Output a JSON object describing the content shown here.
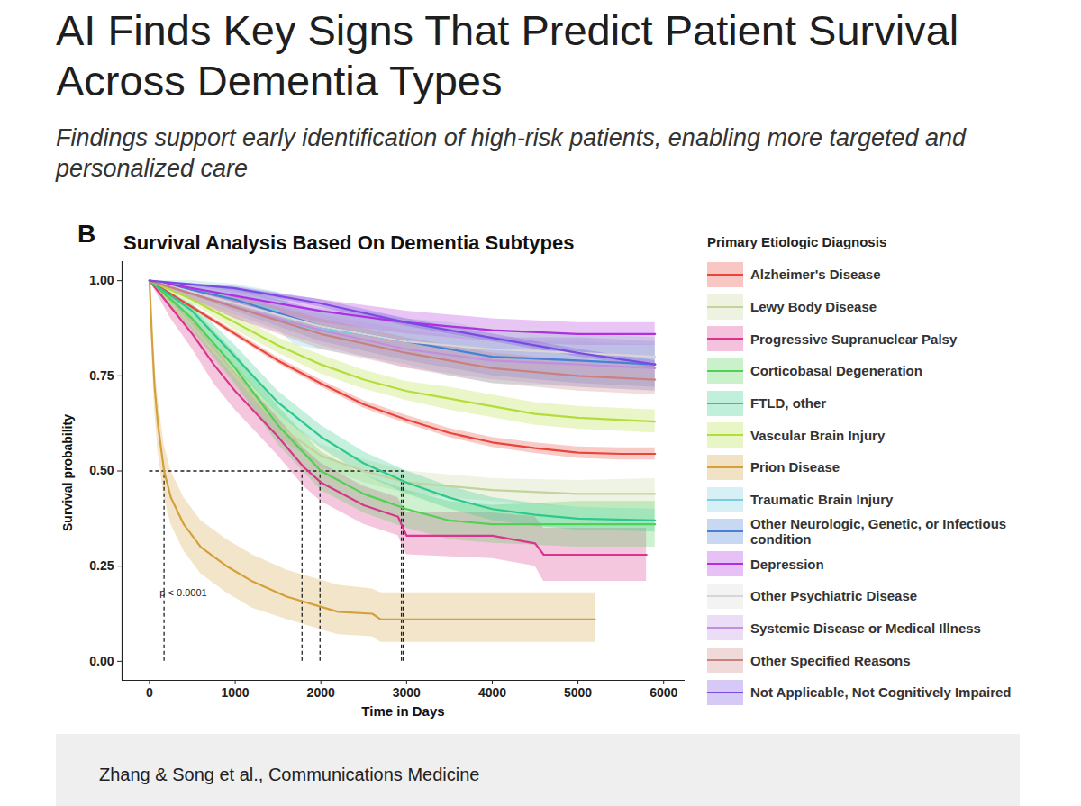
{
  "title": "AI Finds Key Signs That Predict Patient Survival Across Dementia Types",
  "subtitle": "Findings support early identification of high-risk patients, enabling more targeted and personalized care",
  "caption": "Zhang & Song et al., Communications Medicine",
  "chart_data": {
    "type": "line",
    "panel_label": "B",
    "title": "Survival Analysis Based On Dementia Subtypes",
    "xlabel": "Time in Days",
    "ylabel": "Survival probability",
    "xlim": [
      -320,
      6250
    ],
    "ylim": [
      -0.05,
      1.05
    ],
    "xticks": [
      0,
      1000,
      2000,
      3000,
      4000,
      5000,
      6000
    ],
    "yticks": [
      {
        "value": 0,
        "label": "0.00"
      },
      {
        "value": 0.25,
        "label": "0.25"
      },
      {
        "value": 0.5,
        "label": "0.50"
      },
      {
        "value": 0.75,
        "label": "0.75"
      },
      {
        "value": 1,
        "label": "1.00"
      }
    ],
    "grid": false,
    "legend": "right",
    "legend_title": "Primary Etiologic Diagnosis",
    "median_lines": {
      "y": 0.5,
      "x": [
        170,
        1780,
        1990,
        2940,
        2960
      ],
      "line_style": "dashed"
    },
    "annotations": [
      {
        "text": "p < 0.0001",
        "x": 120,
        "y": 0.18
      }
    ],
    "series": [
      {
        "name": "Alzheimer's Disease",
        "color": "#e8463a",
        "x": [
          0,
          500,
          1000,
          1500,
          2000,
          2500,
          3000,
          3500,
          4000,
          4500,
          5000,
          5500,
          5900
        ],
        "values": [
          1,
          0.93,
          0.86,
          0.79,
          0.73,
          0.675,
          0.635,
          0.6,
          0.575,
          0.56,
          0.548,
          0.545,
          0.545
        ],
        "lower": [
          1,
          0.925,
          0.853,
          0.782,
          0.721,
          0.665,
          0.624,
          0.588,
          0.562,
          0.546,
          0.533,
          0.529,
          0.529
        ],
        "upper": [
          1,
          0.935,
          0.867,
          0.798,
          0.739,
          0.685,
          0.646,
          0.612,
          0.588,
          0.574,
          0.563,
          0.561,
          0.561
        ]
      },
      {
        "name": "Lewy Body Disease",
        "color": "#c2d39b",
        "x": [
          0,
          500,
          1000,
          1500,
          2000,
          2500,
          3000,
          3500,
          4000,
          5000,
          5900
        ],
        "values": [
          1,
          0.88,
          0.75,
          0.62,
          0.54,
          0.5,
          0.47,
          0.46,
          0.45,
          0.44,
          0.44
        ],
        "lower": [
          1,
          0.86,
          0.72,
          0.59,
          0.51,
          0.47,
          0.44,
          0.43,
          0.42,
          0.405,
          0.4
        ],
        "upper": [
          1,
          0.9,
          0.78,
          0.65,
          0.57,
          0.53,
          0.5,
          0.49,
          0.48,
          0.475,
          0.48
        ]
      },
      {
        "name": "Progressive Supranuclear Palsy",
        "color": "#d9358c",
        "x": [
          0,
          250,
          500,
          750,
          1000,
          1500,
          1800,
          2000,
          2500,
          2900,
          3000,
          4000,
          4500,
          4600,
          5800
        ],
        "values": [
          1,
          0.93,
          0.86,
          0.78,
          0.71,
          0.59,
          0.51,
          0.47,
          0.41,
          0.38,
          0.33,
          0.33,
          0.31,
          0.28,
          0.28
        ],
        "lower": [
          1,
          0.9,
          0.82,
          0.73,
          0.66,
          0.54,
          0.46,
          0.42,
          0.36,
          0.33,
          0.28,
          0.27,
          0.25,
          0.21,
          0.21
        ],
        "upper": [
          1,
          0.96,
          0.9,
          0.83,
          0.76,
          0.64,
          0.56,
          0.52,
          0.46,
          0.43,
          0.39,
          0.39,
          0.38,
          0.35,
          0.35
        ]
      },
      {
        "name": "Corticobasal Degeneration",
        "color": "#4fd153",
        "x": [
          0,
          500,
          1000,
          1500,
          2000,
          2500,
          3000,
          3500,
          4000,
          5000,
          5900
        ],
        "values": [
          1,
          0.9,
          0.77,
          0.62,
          0.5,
          0.44,
          0.4,
          0.37,
          0.36,
          0.36,
          0.36
        ],
        "lower": [
          1,
          0.87,
          0.73,
          0.57,
          0.45,
          0.39,
          0.35,
          0.32,
          0.31,
          0.3,
          0.3
        ],
        "upper": [
          1,
          0.93,
          0.81,
          0.67,
          0.55,
          0.49,
          0.45,
          0.42,
          0.41,
          0.42,
          0.42
        ]
      },
      {
        "name": "FTLD, other",
        "color": "#2ec98a",
        "x": [
          0,
          500,
          1000,
          1500,
          2000,
          2500,
          3000,
          3500,
          4000,
          4500,
          5000,
          5900
        ],
        "values": [
          1,
          0.92,
          0.8,
          0.68,
          0.59,
          0.52,
          0.47,
          0.43,
          0.4,
          0.385,
          0.375,
          0.37
        ],
        "lower": [
          1,
          0.9,
          0.77,
          0.65,
          0.56,
          0.49,
          0.44,
          0.4,
          0.37,
          0.355,
          0.345,
          0.34
        ],
        "upper": [
          1,
          0.94,
          0.83,
          0.71,
          0.62,
          0.55,
          0.5,
          0.46,
          0.43,
          0.415,
          0.405,
          0.4
        ]
      },
      {
        "name": "Vascular Brain Injury",
        "color": "#b3dd3a",
        "x": [
          0,
          500,
          1000,
          1500,
          2000,
          2500,
          3000,
          3500,
          4000,
          4500,
          5000,
          5900
        ],
        "values": [
          1,
          0.95,
          0.89,
          0.83,
          0.78,
          0.74,
          0.71,
          0.69,
          0.67,
          0.65,
          0.64,
          0.63
        ],
        "lower": [
          1,
          0.94,
          0.87,
          0.81,
          0.755,
          0.715,
          0.685,
          0.66,
          0.64,
          0.62,
          0.61,
          0.6
        ],
        "upper": [
          1,
          0.96,
          0.91,
          0.85,
          0.805,
          0.765,
          0.735,
          0.72,
          0.7,
          0.68,
          0.67,
          0.66
        ]
      },
      {
        "name": "Prion Disease",
        "color": "#d4a03c",
        "x": [
          0,
          30,
          60,
          100,
          170,
          250,
          400,
          600,
          900,
          1200,
          1600,
          2200,
          2600,
          2700,
          5200
        ],
        "values": [
          1,
          0.85,
          0.72,
          0.62,
          0.5,
          0.43,
          0.36,
          0.3,
          0.25,
          0.21,
          0.17,
          0.13,
          0.125,
          0.11,
          0.11
        ],
        "lower": [
          1,
          0.8,
          0.66,
          0.55,
          0.43,
          0.36,
          0.29,
          0.23,
          0.18,
          0.14,
          0.11,
          0.07,
          0.065,
          0.05,
          0.05
        ],
        "upper": [
          1,
          0.9,
          0.78,
          0.69,
          0.57,
          0.5,
          0.43,
          0.37,
          0.32,
          0.28,
          0.24,
          0.2,
          0.19,
          0.18,
          0.18
        ]
      },
      {
        "name": "Traumatic Brain Injury",
        "color": "#79cde0",
        "x": [
          0,
          500,
          1000,
          1500,
          1700,
          2500,
          3000,
          3500,
          4000,
          5000,
          5900
        ],
        "values": [
          1,
          0.98,
          0.95,
          0.92,
          0.88,
          0.86,
          0.84,
          0.82,
          0.8,
          0.79,
          0.78
        ],
        "lower": [
          1,
          0.95,
          0.91,
          0.87,
          0.83,
          0.8,
          0.78,
          0.75,
          0.73,
          0.72,
          0.71
        ],
        "upper": [
          1,
          1,
          0.99,
          0.97,
          0.93,
          0.92,
          0.9,
          0.89,
          0.87,
          0.86,
          0.85
        ]
      },
      {
        "name": "Other Neurologic, Genetic, or Infectious condition",
        "color": "#4a7fd4",
        "x": [
          0,
          1000,
          2000,
          3000,
          4000,
          5000,
          5900
        ],
        "values": [
          1,
          0.95,
          0.88,
          0.84,
          0.8,
          0.79,
          0.78
        ],
        "lower": [
          1,
          0.92,
          0.84,
          0.79,
          0.75,
          0.73,
          0.72
        ],
        "upper": [
          1,
          0.98,
          0.92,
          0.89,
          0.85,
          0.85,
          0.84
        ]
      },
      {
        "name": "Depression",
        "color": "#b02fe0",
        "x": [
          0,
          1000,
          2000,
          3000,
          4000,
          5000,
          5900
        ],
        "values": [
          1,
          0.96,
          0.92,
          0.89,
          0.87,
          0.86,
          0.86
        ],
        "lower": [
          1,
          0.94,
          0.89,
          0.86,
          0.84,
          0.83,
          0.83
        ],
        "upper": [
          1,
          0.98,
          0.95,
          0.92,
          0.9,
          0.89,
          0.89
        ]
      },
      {
        "name": "Other Psychiatric Disease",
        "color": "#d6d6d6",
        "x": [
          0,
          1000,
          2000,
          3000,
          4000,
          5000,
          5900
        ],
        "values": [
          1,
          0.94,
          0.88,
          0.84,
          0.82,
          0.81,
          0.8
        ],
        "lower": [
          1,
          0.91,
          0.84,
          0.79,
          0.76,
          0.75,
          0.74
        ],
        "upper": [
          1,
          0.97,
          0.92,
          0.89,
          0.88,
          0.87,
          0.86
        ]
      },
      {
        "name": "Systemic Disease or Medical Illness",
        "color": "#c18fe0",
        "x": [
          0,
          1000,
          2000,
          3000,
          4000,
          5000,
          5900
        ],
        "values": [
          1,
          0.93,
          0.87,
          0.82,
          0.79,
          0.78,
          0.77
        ],
        "lower": [
          1,
          0.9,
          0.83,
          0.77,
          0.74,
          0.72,
          0.71
        ],
        "upper": [
          1,
          0.96,
          0.91,
          0.87,
          0.84,
          0.84,
          0.83
        ]
      },
      {
        "name": "Other Specified Reasons",
        "color": "#c98080",
        "x": [
          0,
          1000,
          2000,
          3000,
          4000,
          5000,
          5900
        ],
        "values": [
          1,
          0.93,
          0.86,
          0.81,
          0.77,
          0.75,
          0.74
        ],
        "lower": [
          1,
          0.9,
          0.82,
          0.77,
          0.73,
          0.71,
          0.7
        ],
        "upper": [
          1,
          0.96,
          0.9,
          0.85,
          0.81,
          0.79,
          0.78
        ]
      },
      {
        "name": "Not Applicable, Not Cognitively Impaired",
        "color": "#7a4be0",
        "x": [
          0,
          1000,
          2000,
          3000,
          4000,
          5000,
          5900
        ],
        "values": [
          1,
          0.98,
          0.94,
          0.89,
          0.85,
          0.81,
          0.78
        ],
        "lower": [
          1,
          0.975,
          0.93,
          0.88,
          0.84,
          0.8,
          0.77
        ],
        "upper": [
          1,
          0.985,
          0.95,
          0.9,
          0.86,
          0.82,
          0.79
        ]
      }
    ]
  }
}
